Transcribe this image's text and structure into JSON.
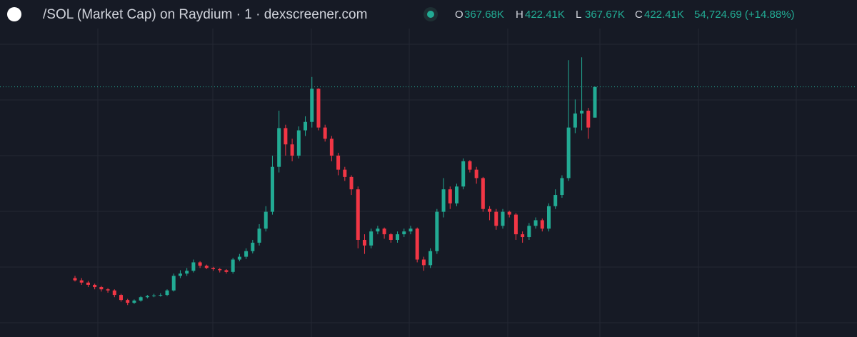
{
  "header": {
    "title": "/SOL (Market Cap) on Raydium · 1 · dexscreener.com",
    "ohlc": [
      {
        "key": "O",
        "value": "367.68K"
      },
      {
        "key": "H",
        "value": "422.41K"
      },
      {
        "key": "L",
        "value": "367.67K"
      },
      {
        "key": "C",
        "value": "422.41K"
      }
    ],
    "change": "54,724.69 (+14.88%)"
  },
  "chart_data": {
    "type": "candlestick",
    "ylim": [
      0,
      530
    ],
    "up_color": "#22ab94",
    "down_color": "#f23645",
    "grid": true,
    "open": [
      82,
      78,
      74,
      70,
      66,
      62,
      60,
      52,
      43,
      38,
      42,
      48,
      50,
      51,
      52,
      60,
      86,
      90,
      95,
      110,
      104,
      100,
      98,
      96,
      93,
      115,
      120,
      130,
      145,
      170,
      200,
      280,
      349,
      320,
      300,
      345,
      360,
      419,
      350,
      330,
      300,
      275,
      262,
      240,
      150,
      140,
      165,
      170,
      160,
      150,
      160,
      165,
      170,
      115,
      105,
      130,
      200,
      240,
      215,
      245,
      290,
      275,
      260,
      205,
      200,
      175,
      200,
      195,
      160,
      155,
      175,
      185,
      170,
      210,
      230,
      260,
      350,
      375,
      380,
      367.68
    ],
    "high": [
      86,
      82,
      77,
      72,
      68,
      64,
      62,
      54,
      45,
      44,
      50,
      52,
      54,
      55,
      62,
      90,
      96,
      100,
      115,
      112,
      106,
      102,
      100,
      98,
      118,
      125,
      135,
      150,
      178,
      210,
      300,
      380,
      355,
      330,
      352,
      370,
      440,
      420,
      355,
      335,
      305,
      280,
      265,
      245,
      160,
      170,
      175,
      172,
      162,
      165,
      170,
      175,
      172,
      120,
      135,
      205,
      260,
      245,
      250,
      295,
      292,
      280,
      262,
      210,
      205,
      205,
      202,
      198,
      165,
      180,
      190,
      188,
      215,
      240,
      265,
      470,
      400,
      475,
      385,
      422.41
    ],
    "low": [
      76,
      70,
      66,
      62,
      58,
      56,
      48,
      40,
      34,
      36,
      40,
      46,
      48,
      49,
      50,
      58,
      82,
      86,
      92,
      100,
      98,
      95,
      92,
      90,
      90,
      112,
      116,
      126,
      140,
      165,
      195,
      270,
      300,
      290,
      295,
      335,
      350,
      345,
      325,
      290,
      265,
      255,
      230,
      135,
      125,
      135,
      160,
      152,
      145,
      145,
      155,
      160,
      110,
      95,
      100,
      125,
      190,
      205,
      210,
      240,
      270,
      250,
      200,
      185,
      168,
      170,
      190,
      150,
      145,
      150,
      170,
      165,
      165,
      205,
      225,
      255,
      340,
      345,
      330,
      367.67
    ],
    "close": [
      78,
      74,
      70,
      66,
      62,
      60,
      52,
      43,
      38,
      42,
      48,
      50,
      51,
      52,
      60,
      86,
      90,
      95,
      110,
      104,
      100,
      98,
      96,
      93,
      115,
      120,
      130,
      145,
      170,
      200,
      280,
      349,
      320,
      300,
      345,
      360,
      419,
      350,
      330,
      300,
      275,
      262,
      240,
      150,
      140,
      165,
      170,
      160,
      150,
      160,
      165,
      170,
      115,
      105,
      130,
      200,
      240,
      215,
      245,
      290,
      275,
      260,
      205,
      200,
      175,
      200,
      195,
      160,
      155,
      175,
      185,
      170,
      210,
      230,
      260,
      350,
      375,
      380,
      350,
      422.41
    ]
  }
}
